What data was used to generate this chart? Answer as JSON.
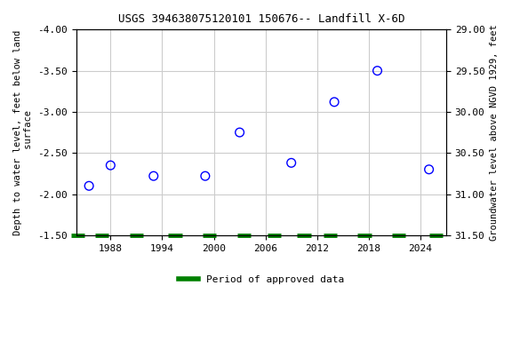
{
  "title": "USGS 394638075120101 150676-- Landfill X-6D",
  "xlabel": "",
  "ylabel_left": "Depth to water level, feet below land\n surface",
  "ylabel_right": "Groundwater level above NGVD 1929, feet",
  "xlim": [
    1984,
    2027
  ],
  "ylim_left": [
    -1.5,
    -4.0
  ],
  "ylim_right": [
    29.0,
    31.5
  ],
  "yticks_left": [
    -4.0,
    -3.5,
    -3.0,
    -2.5,
    -2.0,
    -1.5
  ],
  "yticks_right": [
    29.0,
    29.5,
    30.0,
    30.5,
    31.0,
    31.5
  ],
  "xticks": [
    1988,
    1994,
    2000,
    2006,
    2012,
    2018,
    2024
  ],
  "scatter_x": [
    1985.5,
    1988,
    1993,
    1999,
    2003,
    2009,
    2014,
    2019,
    2025
  ],
  "scatter_y": [
    -2.1,
    -2.35,
    -2.22,
    -2.22,
    -2.75,
    -2.38,
    -3.12,
    -3.5,
    -2.3
  ],
  "scatter_color": "blue",
  "marker_size": 7,
  "grid_color": "#cccccc",
  "background_color": "#ffffff",
  "legend_label": "Period of approved data",
  "legend_color": "#008000",
  "tick_bar_y": -1.5,
  "tick_bar_xs": [
    1984.2,
    1987.0,
    1991.0,
    1995.5,
    1999.5,
    2003.5,
    2007.0,
    2010.5,
    2013.5,
    2017.5,
    2021.5,
    2025.8
  ],
  "tick_bar_color": "#008000",
  "tick_bar_width": 3.5
}
